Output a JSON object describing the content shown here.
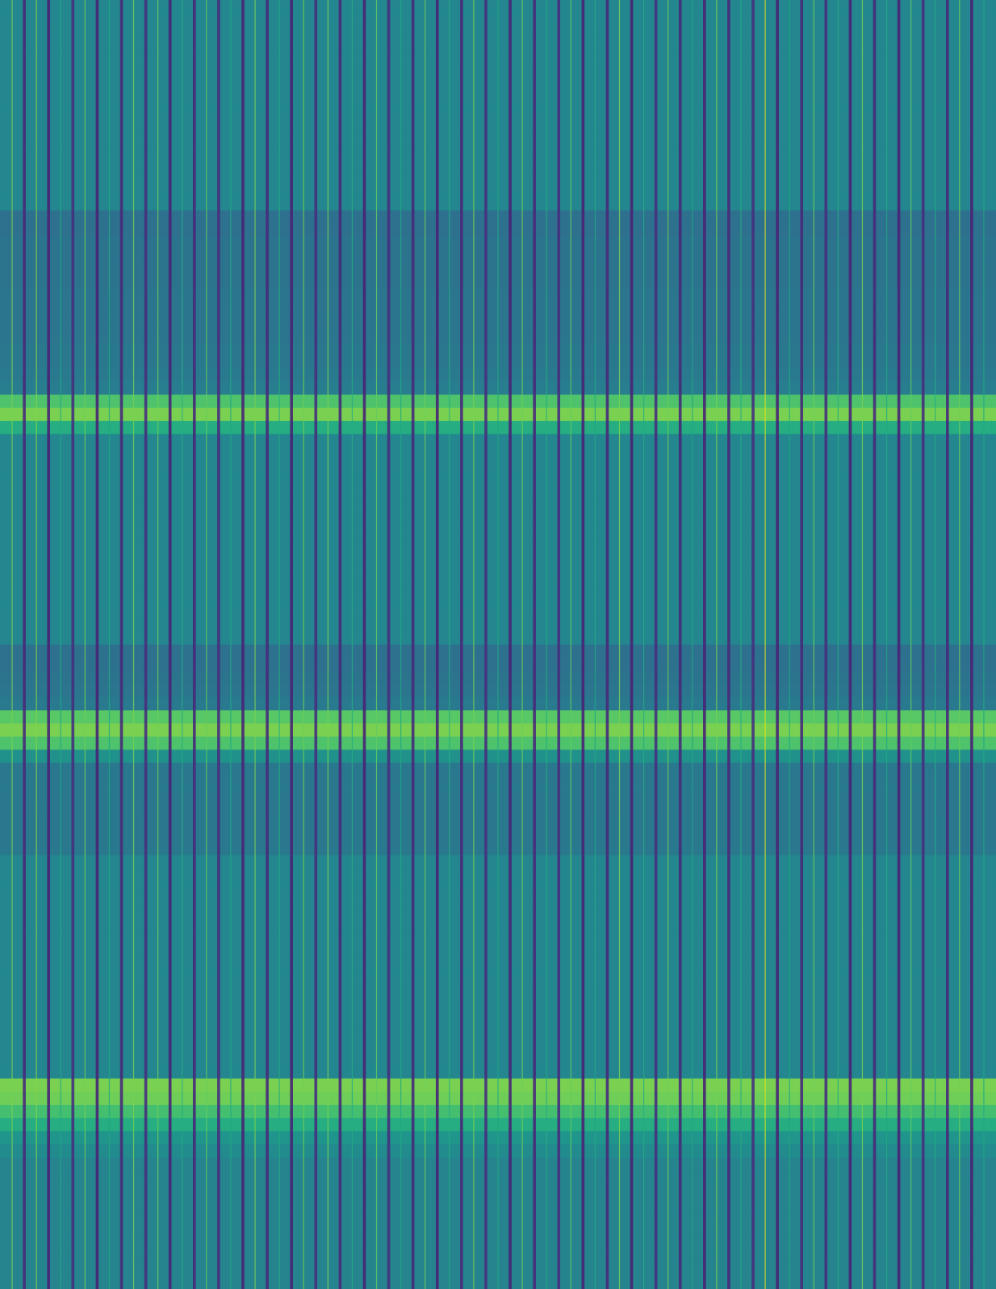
{
  "chart_data": {
    "type": "heatmap",
    "tick_labels": false,
    "xlim": [
      0,
      41
    ],
    "ylim": [
      0,
      98
    ],
    "zlim": [
      0,
      1
    ],
    "row_values": [
      0.46,
      0.46,
      0.46,
      0.46,
      0.46,
      0.46,
      0.46,
      0.46,
      0.46,
      0.46,
      0.46,
      0.46,
      0.46,
      0.46,
      0.46,
      0.46,
      0.37,
      0.37,
      0.38,
      0.38,
      0.38,
      0.38,
      0.39,
      0.39,
      0.39,
      0.39,
      0.4,
      0.4,
      0.41,
      0.42,
      0.72,
      0.8,
      0.62,
      0.46,
      0.46,
      0.46,
      0.46,
      0.46,
      0.46,
      0.46,
      0.46,
      0.46,
      0.46,
      0.46,
      0.46,
      0.46,
      0.46,
      0.46,
      0.46,
      0.37,
      0.37,
      0.38,
      0.39,
      0.41,
      0.74,
      0.8,
      0.72,
      0.5,
      0.4,
      0.4,
      0.4,
      0.4,
      0.4,
      0.4,
      0.4,
      0.46,
      0.46,
      0.46,
      0.46,
      0.46,
      0.46,
      0.46,
      0.46,
      0.46,
      0.46,
      0.46,
      0.46,
      0.46,
      0.46,
      0.46,
      0.46,
      0.46,
      0.8,
      0.78,
      0.7,
      0.62,
      0.52,
      0.48,
      0.45,
      0.45,
      0.45,
      0.45,
      0.45,
      0.45,
      0.45,
      0.45,
      0.45,
      0.45
    ],
    "dark_line_x": [
      1,
      2,
      3,
      4,
      5,
      6,
      7,
      8,
      9,
      10,
      11,
      12,
      13,
      14,
      15,
      16,
      17,
      18,
      19,
      20,
      21,
      22,
      23,
      24,
      25,
      26,
      27,
      28,
      29,
      30,
      31,
      32,
      33,
      34,
      35,
      36,
      37,
      38,
      39,
      40
    ],
    "dark_line_values": [
      0.12,
      0.1,
      0.14,
      0.1,
      0.12,
      0.14,
      0.1,
      0.12,
      0.14,
      0.1,
      0.12,
      0.1,
      0.14,
      0.12,
      0.1,
      0.14,
      0.12,
      0.1,
      0.12,
      0.14,
      0.1,
      0.12,
      0.14,
      0.1,
      0.12,
      0.1,
      0.14,
      0.12,
      0.1,
      0.12,
      0.14,
      0.1,
      0.12,
      0.14,
      0.1,
      0.12,
      0.1,
      0.14,
      0.12,
      0.1
    ],
    "bright_line_x": [
      0.5,
      1.5,
      2.5,
      3.5,
      4.5,
      5.5,
      6.5,
      7.5,
      8.5,
      9.5,
      10.5,
      11.5,
      12.5,
      13.5,
      14.5,
      15.5,
      16.5,
      17.5,
      18.5,
      19.5,
      20.5,
      21.5,
      22.5,
      23.5,
      24.5,
      25.5,
      26.5,
      27.5,
      28.5,
      29.5,
      30.5,
      31.5,
      32.5,
      33.5,
      34.5,
      35.5,
      36.5,
      37.5,
      38.5,
      39.5,
      40.5
    ],
    "bright_line_values": [
      0.8,
      0.82,
      0.6,
      0.78,
      0.6,
      0.8,
      0.78,
      0.62,
      0.76,
      0.6,
      0.8,
      0.62,
      0.78,
      0.8,
      0.62,
      0.76,
      0.6,
      0.78,
      0.62,
      0.8,
      0.6,
      0.78,
      0.62,
      0.76,
      0.6,
      0.8,
      0.62,
      0.78,
      0.6,
      0.8,
      0.62,
      0.95,
      0.6,
      0.78,
      0.62,
      0.8,
      0.6,
      0.76,
      0.62,
      0.78,
      0.6
    ]
  }
}
